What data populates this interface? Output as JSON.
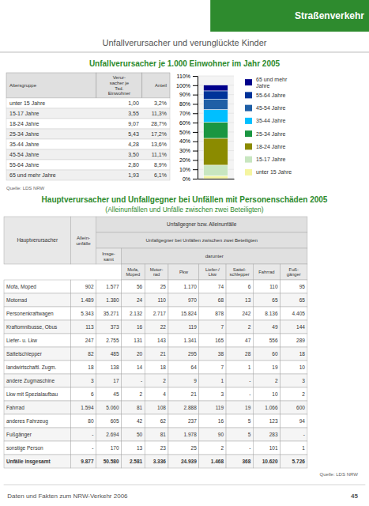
{
  "header": {
    "title": "Straßenverkehr",
    "color": "#2e8b2e"
  },
  "section_title": "Unfallverursacher und verunglückte Kinder",
  "chart_data": {
    "type": "bar",
    "stacked": true,
    "title": "Unfallverursacher je 1.000 Einwohner im Jahr 2005",
    "categories": [
      null
    ],
    "series": [
      {
        "name": "unter 15 Jahre",
        "color": "#f5f5a0",
        "values": [
          3.2
        ]
      },
      {
        "name": "15-17 Jahre",
        "color": "#c8e6c0",
        "values": [
          11.3
        ]
      },
      {
        "name": "18-24 Jahre",
        "color": "#8b8b00",
        "values": [
          28.7
        ]
      },
      {
        "name": "25-34 Jahre",
        "color": "#1a9641",
        "values": [
          17.2
        ]
      },
      {
        "name": "35-44 Jahre",
        "color": "#00bfff",
        "values": [
          13.6
        ]
      },
      {
        "name": "45-54 Jahre",
        "color": "#1f5fa6",
        "values": [
          11.1
        ]
      },
      {
        "name": "55-64 Jahre",
        "color": "#003399",
        "values": [
          8.9
        ]
      },
      {
        "name": "65 und mehr\nJahre",
        "color": "#00008b",
        "values": [
          6.1
        ]
      }
    ],
    "ylim": [
      0,
      110
    ],
    "yticks": [
      {
        "value": 0,
        "label": "0%"
      },
      {
        "value": 10,
        "label": "10%"
      },
      {
        "value": 20,
        "label": "20%"
      },
      {
        "value": 30,
        "label": "30%"
      },
      {
        "value": 40,
        "label": "40%"
      },
      {
        "value": 50,
        "label": "50%"
      },
      {
        "value": 60,
        "label": "60%"
      },
      {
        "value": 70,
        "label": "70%"
      },
      {
        "value": 80,
        "label": "80%"
      },
      {
        "value": 90,
        "label": "90%"
      },
      {
        "value": 100,
        "label": "100%"
      },
      {
        "value": 110,
        "label": "110%"
      }
    ],
    "grid": true,
    "legend": "right",
    "tick_labels": "y"
  },
  "table1": {
    "columns": [
      "Altersgruppe",
      "Verur-\nsacher je\nTsd.\nEinwohner",
      "Anteil"
    ],
    "rows": [
      [
        "unter 15 Jahre",
        "1,00",
        "3,2%"
      ],
      [
        "15-17 Jahre",
        "3,55",
        "11,3%"
      ],
      [
        "18-24 Jahre",
        "9,07",
        "28,7%"
      ],
      [
        "25-34 Jahre",
        "5,43",
        "17,2%"
      ],
      [
        "35-44 Jahre",
        "4,28",
        "13,6%"
      ],
      [
        "45-54 Jahre",
        "3,50",
        "11,1%"
      ],
      [
        "55-64 Jahre",
        "2,80",
        "8,9%"
      ],
      [
        "65 und mehr Jahre",
        "1,93",
        "6,1%"
      ]
    ],
    "source": "Quelle: LDS NRW"
  },
  "table2": {
    "title": "Hauptverursacher und Unfallgegner bei Unfällen mit Personenschäden 2005",
    "subtitle": "(Alleinunfällen und Unfälle zwischen zwei Beteiligten)",
    "header": {
      "row_label": "Hauptverursacher",
      "first": "Allein-\nunfälle",
      "group": "Unfallgegner bzw. Alleinunfälle",
      "subgroup": "Unfallgegner bei Unfällen zwischen zwei Beteiligten",
      "total": "Insge-\nsamt",
      "among": "darunter",
      "columns": [
        "Mofa,\nMoped",
        "Motor-\nrad",
        "Pkw",
        "Liefer-/\nLkw",
        "Sattel-\nschlepper",
        "Fahrrad",
        "Fuß-\ngänger"
      ]
    },
    "rows": [
      [
        "Mofa, Moped",
        "902",
        "1.577",
        "56",
        "25",
        "1.170",
        "74",
        "6",
        "110",
        "95"
      ],
      [
        "Motorrad",
        "1.489",
        "1.380",
        "24",
        "110",
        "970",
        "68",
        "13",
        "65",
        "65"
      ],
      [
        "Personenkraftwagen",
        "5.343",
        "35.271",
        "2.132",
        "2.717",
        "15.824",
        "878",
        "242",
        "8.136",
        "4.405"
      ],
      [
        "Kraftomnibusse, Obus",
        "113",
        "373",
        "16",
        "22",
        "119",
        "7",
        "2",
        "49",
        "144"
      ],
      [
        "Liefer- u. Lkw",
        "247",
        "2.755",
        "131",
        "143",
        "1.341",
        "165",
        "47",
        "556",
        "289"
      ],
      [
        "Sattelschlepper",
        "82",
        "485",
        "20",
        "21",
        "295",
        "38",
        "28",
        "60",
        "18"
      ],
      [
        "landwirtschaftl. Zugm.",
        "18",
        "138",
        "14",
        "18",
        "64",
        "7",
        "1",
        "19",
        "10"
      ],
      [
        "andere Zugmaschine",
        "3",
        "17",
        "-",
        "2",
        "9",
        "1",
        "-",
        "2",
        "3"
      ],
      [
        "Lkw mit Spezialaufbau",
        "6",
        "45",
        "2",
        "4",
        "21",
        "3",
        "-",
        "10",
        "2"
      ],
      [
        "Fahrrad",
        "1.594",
        "5.060",
        "81",
        "108",
        "2.888",
        "119",
        "19",
        "1.066",
        "600"
      ],
      [
        "anderes Fahrzeug",
        "80",
        "605",
        "42",
        "62",
        "237",
        "16",
        "5",
        "123",
        "94"
      ],
      [
        "Fußgänger",
        "-",
        "2.694",
        "50",
        "81",
        "1.978",
        "90",
        "5",
        "283",
        "-"
      ],
      [
        "sonstige Person",
        "-",
        "170",
        "13",
        "23",
        "25",
        "2",
        "-",
        "101",
        "1"
      ],
      [
        "Unfälle insgesamt",
        "9.877",
        "50.580",
        "2.581",
        "3.336",
        "24.939",
        "1.468",
        "368",
        "10.620",
        "5.726"
      ]
    ],
    "source": "Quelle: LDS NRW"
  },
  "footer": {
    "left": "Daten und Fakten zum NRW-Verkehr 2006",
    "right": "45"
  }
}
